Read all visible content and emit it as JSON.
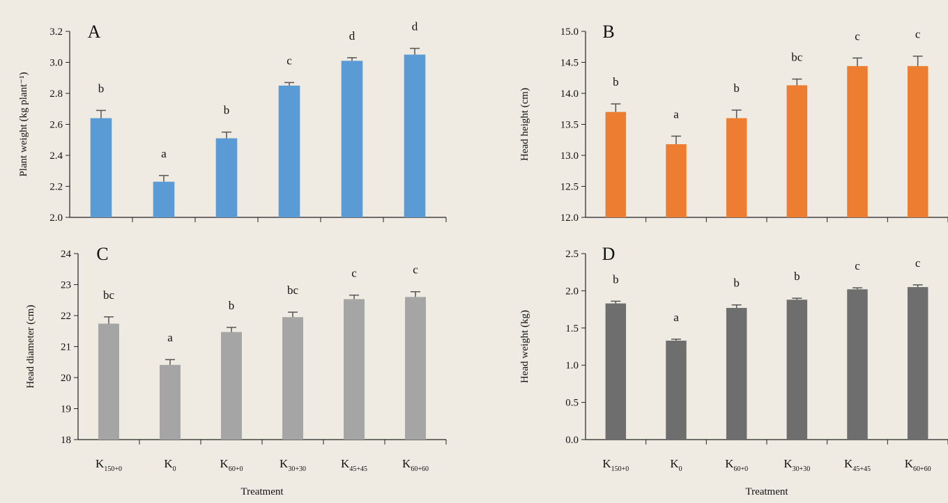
{
  "chart_data": [
    {
      "type": "bar",
      "panel": "A",
      "categories": [
        {
          "main": "K",
          "sub": "150+0"
        },
        {
          "main": "K",
          "sub": "0"
        },
        {
          "main": "K",
          "sub": "60+0"
        },
        {
          "main": "K",
          "sub": "30+30"
        },
        {
          "main": "K",
          "sub": "45+45"
        },
        {
          "main": "K",
          "sub": "60+60"
        }
      ],
      "values": [
        2.64,
        2.23,
        2.51,
        2.85,
        3.01,
        3.05
      ],
      "errors": [
        0.05,
        0.04,
        0.04,
        0.02,
        0.02,
        0.04
      ],
      "significance": [
        "b",
        "a",
        "b",
        "c",
        "d",
        "d"
      ],
      "ylabel": "Plant weight (kg plant⁻¹)",
      "xlabel": "",
      "ylim": [
        2.0,
        3.2
      ],
      "yticks": [
        "2.0",
        "2.2",
        "2.4",
        "2.6",
        "2.8",
        "3.0",
        "3.2"
      ],
      "color": "#5b9bd5",
      "grid": false
    },
    {
      "type": "bar",
      "panel": "B",
      "categories": [
        {
          "main": "K",
          "sub": "150+0"
        },
        {
          "main": "K",
          "sub": "0"
        },
        {
          "main": "K",
          "sub": "60+0"
        },
        {
          "main": "K",
          "sub": "30+30"
        },
        {
          "main": "K",
          "sub": "45+45"
        },
        {
          "main": "K",
          "sub": "60+60"
        }
      ],
      "values": [
        13.7,
        13.18,
        13.6,
        14.13,
        14.44,
        14.44
      ],
      "errors": [
        0.13,
        0.13,
        0.13,
        0.1,
        0.13,
        0.16
      ],
      "significance": [
        "b",
        "a",
        "b",
        "bc",
        "c",
        "c"
      ],
      "ylabel": "Head height (cm)",
      "xlabel": "",
      "ylim": [
        12.0,
        15.0
      ],
      "yticks": [
        "12.0",
        "12.5",
        "13.0",
        "13.5",
        "14.0",
        "14.5",
        "15.0"
      ],
      "color": "#ed7d31",
      "grid": false
    },
    {
      "type": "bar",
      "panel": "C",
      "categories": [
        {
          "main": "K",
          "sub": "150+0"
        },
        {
          "main": "K",
          "sub": "0"
        },
        {
          "main": "K",
          "sub": "60+0"
        },
        {
          "main": "K",
          "sub": "30+30"
        },
        {
          "main": "K",
          "sub": "45+45"
        },
        {
          "main": "K",
          "sub": "60+60"
        }
      ],
      "values": [
        21.74,
        20.41,
        21.47,
        21.95,
        22.53,
        22.6
      ],
      "errors": [
        0.22,
        0.17,
        0.15,
        0.16,
        0.13,
        0.17
      ],
      "significance": [
        "bc",
        "a",
        "b",
        "bc",
        "c",
        "c"
      ],
      "ylabel": "Head diameter (cm)",
      "xlabel": "Treatment",
      "ylim": [
        18,
        24
      ],
      "yticks": [
        "18",
        "19",
        "20",
        "21",
        "22",
        "23",
        "24"
      ],
      "color": "#a5a5a5",
      "grid": false
    },
    {
      "type": "bar",
      "panel": "D",
      "categories": [
        {
          "main": "K",
          "sub": "150+0"
        },
        {
          "main": "K",
          "sub": "0"
        },
        {
          "main": "K",
          "sub": "60+0"
        },
        {
          "main": "K",
          "sub": "30+30"
        },
        {
          "main": "K",
          "sub": "45+45"
        },
        {
          "main": "K",
          "sub": "60+60"
        }
      ],
      "values": [
        1.83,
        1.33,
        1.77,
        1.88,
        2.02,
        2.05
      ],
      "errors": [
        0.03,
        0.02,
        0.04,
        0.02,
        0.02,
        0.03
      ],
      "significance": [
        "b",
        "a",
        "b",
        "b",
        "c",
        "c"
      ],
      "ylabel": "Head weight (kg)",
      "xlabel": "Treatment",
      "ylim": [
        0.0,
        2.5
      ],
      "yticks": [
        "0.0",
        "0.5",
        "1.0",
        "1.5",
        "2.0",
        "2.5"
      ],
      "color": "#6e6e6e",
      "grid": false
    }
  ],
  "colors": {
    "background": "#efebe2",
    "axis": "#222222",
    "error_bar": "#555555"
  }
}
